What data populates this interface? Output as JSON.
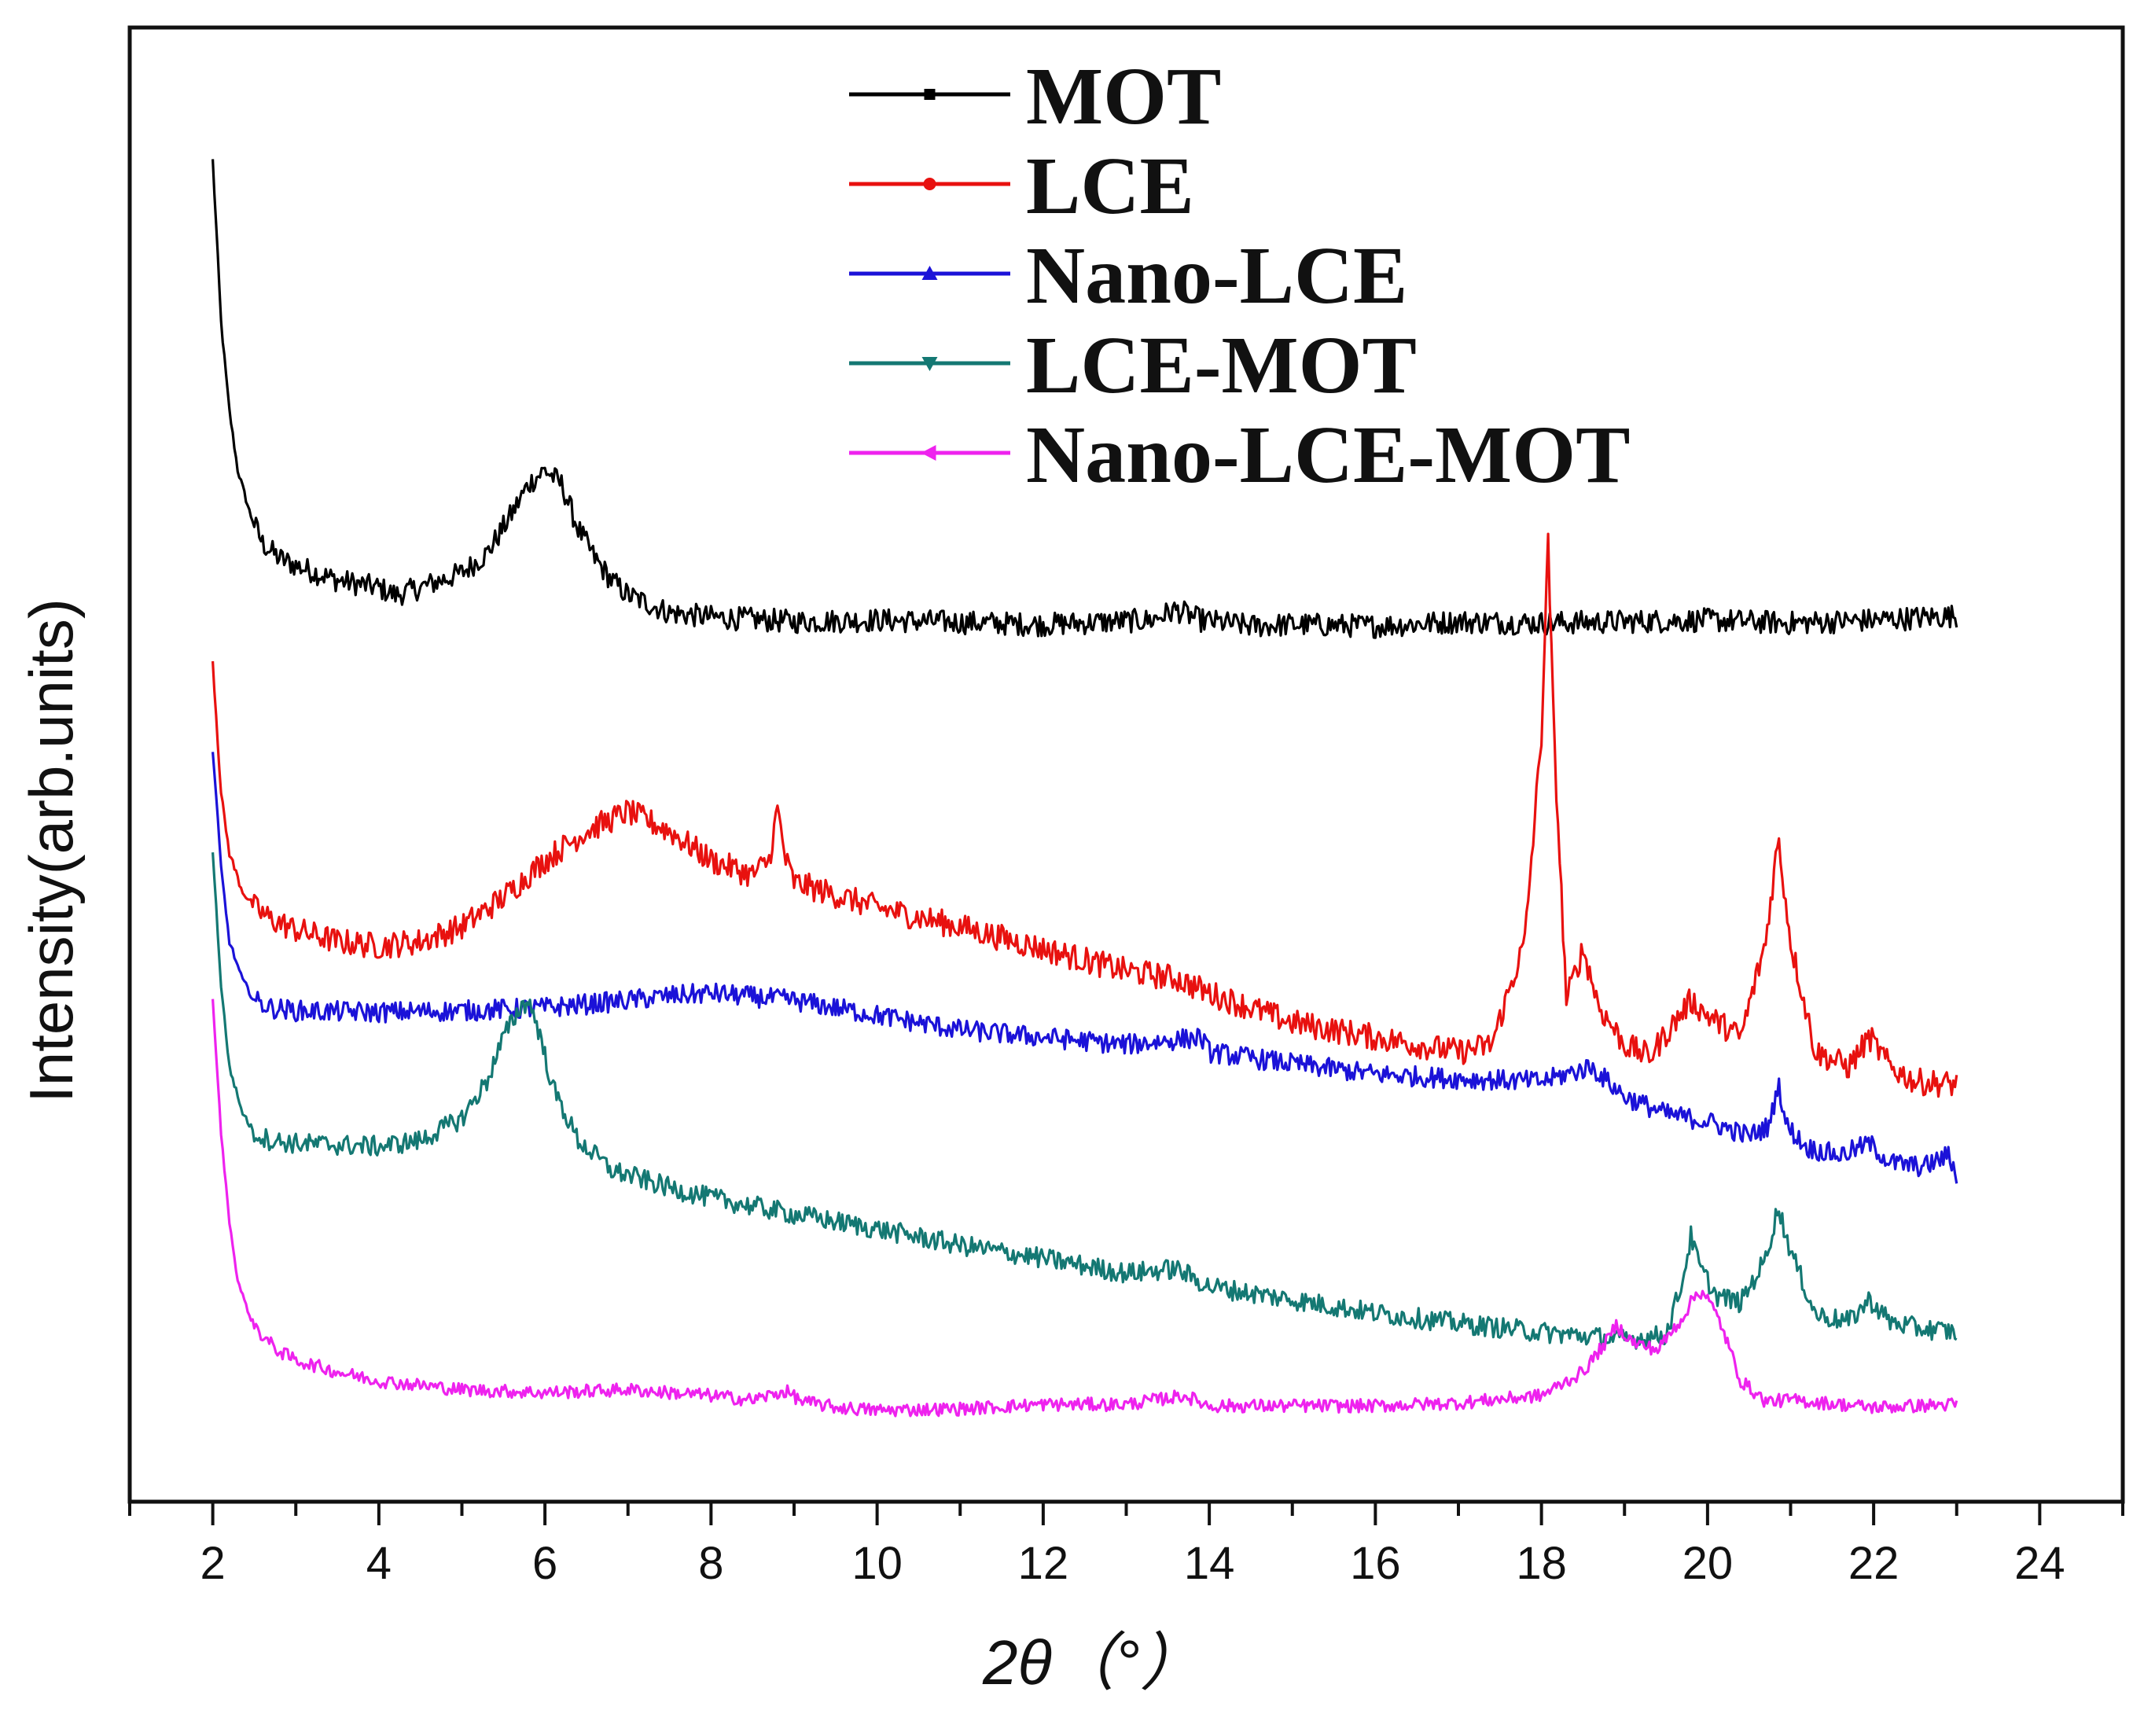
{
  "chart_data": {
    "type": "line",
    "title": "",
    "xlabel": "2θ（°）",
    "ylabel": "Intensity(arb.units)",
    "xlim": [
      1,
      25
    ],
    "ylim": [
      0,
      100
    ],
    "y_ticks_shown": false,
    "grid": false,
    "legend_position": "top-center",
    "x_ticks": [
      "2",
      "4",
      "6",
      "8",
      "10",
      "12",
      "14",
      "16",
      "18",
      "20",
      "22",
      "24"
    ],
    "series": [
      {
        "name": "MOT",
        "color": "#000000",
        "noise": 0.8,
        "x": [
          2.0,
          2.1,
          2.2,
          2.3,
          2.45,
          2.6,
          2.8,
          3.0,
          3.5,
          4.0,
          4.2,
          4.5,
          5.0,
          5.3,
          5.6,
          5.8,
          6.0,
          6.2,
          6.4,
          6.6,
          6.8,
          7.0,
          7.5,
          8.0,
          9.0,
          10.0,
          12.0,
          13.3,
          13.6,
          13.9,
          14.5,
          15.0,
          16.0,
          17.0,
          18.0,
          19.0,
          20.0,
          21.0,
          22.0,
          23.0
        ],
        "values": [
          91,
          80,
          74,
          70,
          67,
          65,
          64,
          63.5,
          62.5,
          62,
          61.5,
          62,
          63,
          64.3,
          67,
          69,
          70,
          69,
          66,
          64,
          62.5,
          61.5,
          60.3,
          60,
          59.7,
          59.8,
          59.5,
          59.8,
          60.5,
          59.8,
          59.4,
          59.5,
          59.4,
          59.7,
          59.6,
          59.7,
          59.8,
          59.6,
          59.8,
          60.1
        ]
      },
      {
        "name": "LCE",
        "color": "#e8110f",
        "noise": 0.9,
        "x": [
          2.0,
          2.1,
          2.2,
          2.35,
          2.5,
          2.7,
          3.0,
          3.5,
          4.0,
          4.5,
          5.0,
          5.5,
          6.0,
          6.5,
          7.0,
          7.5,
          8.0,
          8.5,
          8.7,
          8.8,
          8.9,
          9.0,
          9.3,
          10.0,
          11.0,
          12.0,
          13.0,
          13.6,
          14.0,
          15.0,
          16.0,
          17.0,
          17.4,
          17.8,
          18.0,
          18.08,
          18.15,
          18.3,
          18.5,
          18.7,
          19.0,
          19.3,
          19.6,
          19.8,
          20.0,
          20.4,
          20.7,
          20.85,
          21.0,
          21.3,
          21.7,
          21.95,
          22.2,
          22.5,
          23.0
        ],
        "values": [
          57,
          48,
          44,
          41.5,
          40.3,
          39.5,
          38.8,
          38,
          37.7,
          38,
          39,
          41,
          43.5,
          45.5,
          46.8,
          45.5,
          43.5,
          42.5,
          43.5,
          47,
          43.5,
          42,
          41.5,
          40.3,
          39,
          37.5,
          36,
          35.5,
          34.5,
          32.5,
          31.5,
          30.5,
          31,
          38,
          52,
          65,
          52,
          34,
          37.5,
          33.5,
          31,
          30.2,
          32.5,
          34,
          33,
          31.5,
          38,
          45,
          38,
          30.5,
          29.5,
          31.5,
          29.5,
          28.5,
          28.3
        ]
      },
      {
        "name": "Nano-LCE",
        "color": "#1b12d8",
        "noise": 0.7,
        "x": [
          2.0,
          2.1,
          2.2,
          2.35,
          2.5,
          2.7,
          3.0,
          4.0,
          5.0,
          6.0,
          7.0,
          7.5,
          8.0,
          9.0,
          10.0,
          11.0,
          12.0,
          13.0,
          13.9,
          14.0,
          15.0,
          16.0,
          17.0,
          18.0,
          18.6,
          19.0,
          19.5,
          20.0,
          20.5,
          20.75,
          20.85,
          20.95,
          21.2,
          21.6,
          21.95,
          22.2,
          22.6,
          22.9,
          23.0
        ],
        "values": [
          51,
          43,
          38,
          35.5,
          34,
          33.5,
          33.3,
          33.2,
          33.3,
          33.5,
          34,
          34.3,
          34.5,
          34,
          33,
          32,
          31.5,
          31,
          31.5,
          30.5,
          29.7,
          29,
          28.7,
          28.5,
          29.5,
          27.5,
          26.3,
          25.8,
          24.8,
          25.5,
          28.5,
          25.5,
          24,
          23.5,
          24.3,
          23,
          22.7,
          23.5,
          22.2
        ]
      },
      {
        "name": "LCE-MOT",
        "color": "#147873",
        "noise": 0.7,
        "x": [
          2.0,
          2.1,
          2.2,
          2.35,
          2.5,
          2.7,
          3.0,
          3.5,
          4.0,
          4.5,
          5.0,
          5.3,
          5.5,
          5.7,
          5.8,
          5.9,
          6.1,
          6.4,
          6.8,
          7.5,
          8.0,
          9.0,
          10.0,
          11.0,
          12.0,
          13.0,
          13.6,
          14.0,
          15.0,
          16.0,
          17.0,
          18.0,
          19.0,
          19.5,
          19.7,
          19.8,
          19.9,
          20.1,
          20.4,
          20.7,
          20.85,
          21.0,
          21.3,
          21.7,
          21.95,
          22.2,
          22.5,
          23.0
        ],
        "values": [
          44,
          35,
          29.5,
          26.5,
          25,
          24.5,
          24.3,
          24.2,
          24.1,
          24.5,
          26,
          28.5,
          31.5,
          33.5,
          34,
          32.5,
          28,
          24.5,
          22.5,
          21.3,
          20.6,
          19.5,
          18.5,
          17.4,
          16.5,
          15.5,
          15.8,
          14.6,
          13.7,
          12.8,
          12.1,
          11.5,
          11,
          11.3,
          15,
          18,
          16,
          14,
          13.5,
          16.5,
          20,
          17,
          12.7,
          12.2,
          13.7,
          12.2,
          11.8,
          11.5
        ]
      },
      {
        "name": "Nano-LCE-MOT",
        "color": "#ee22ee",
        "noise": 0.45,
        "x": [
          2.0,
          2.1,
          2.2,
          2.3,
          2.45,
          2.6,
          2.8,
          3.0,
          3.5,
          4.0,
          5.0,
          6.0,
          7.0,
          8.0,
          8.5,
          8.9,
          9.1,
          9.5,
          10.0,
          11.0,
          12.0,
          13.0,
          13.7,
          14.0,
          15.0,
          16.0,
          17.0,
          18.0,
          18.5,
          18.8,
          18.9,
          19.1,
          19.4,
          19.7,
          19.85,
          19.95,
          20.15,
          20.4,
          20.7,
          21.0,
          22.0,
          23.0
        ],
        "values": [
          34,
          25,
          19,
          15,
          12.5,
          11.2,
          10.2,
          9.6,
          8.8,
          8.2,
          7.6,
          7.4,
          7.6,
          7.2,
          6.9,
          7.5,
          6.8,
          6.4,
          6.2,
          6.3,
          6.6,
          6.6,
          7.2,
          6.5,
          6.5,
          6.5,
          6.7,
          7.2,
          8.8,
          11,
          12,
          10.8,
          10.3,
          12.5,
          14,
          14.3,
          12.2,
          8.2,
          6.8,
          6.9,
          6.4,
          6.6
        ]
      }
    ]
  }
}
